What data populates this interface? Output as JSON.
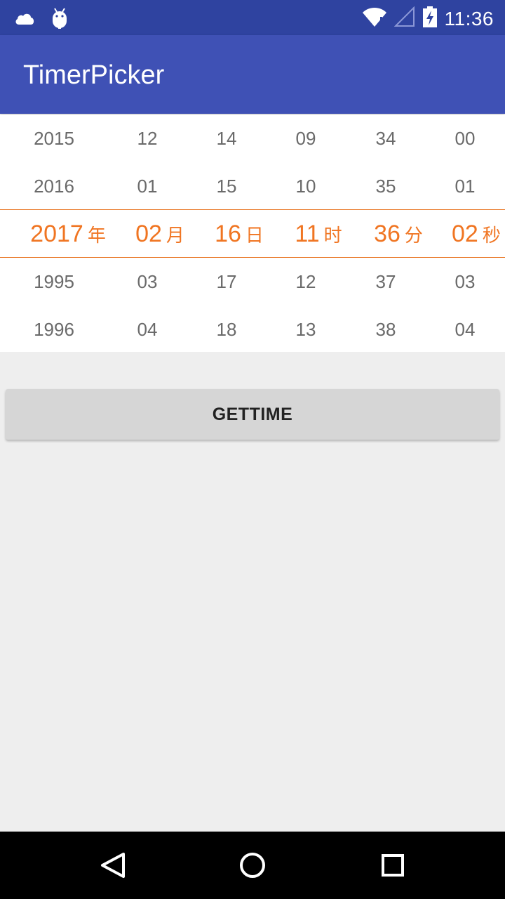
{
  "status_bar": {
    "time": "11:36",
    "left_icons": [
      "cloud-icon",
      "android-icon"
    ],
    "right_icons": [
      "wifi-icon",
      "signal-icon",
      "battery-charging-icon"
    ]
  },
  "app_bar": {
    "title": "TimerPicker",
    "color": "#3f51b5"
  },
  "picker": {
    "accent_color": "#f07522",
    "columns": [
      {
        "name": "year",
        "unit": "年",
        "rows": [
          "2015",
          "2016",
          "2017",
          "1995",
          "1996"
        ]
      },
      {
        "name": "month",
        "unit": "月",
        "rows": [
          "12",
          "01",
          "02",
          "03",
          "04"
        ]
      },
      {
        "name": "day",
        "unit": "日",
        "rows": [
          "14",
          "15",
          "16",
          "17",
          "18"
        ]
      },
      {
        "name": "hour",
        "unit": "时",
        "rows": [
          "09",
          "10",
          "11",
          "12",
          "13"
        ]
      },
      {
        "name": "minute",
        "unit": "分",
        "rows": [
          "34",
          "35",
          "36",
          "37",
          "38"
        ]
      },
      {
        "name": "second",
        "unit": "秒",
        "rows": [
          "00",
          "01",
          "02",
          "03",
          "04"
        ]
      }
    ]
  },
  "button": {
    "label": "GETTIME"
  },
  "nav_bar": {
    "icons": [
      "back-icon",
      "home-icon",
      "recents-icon"
    ]
  }
}
